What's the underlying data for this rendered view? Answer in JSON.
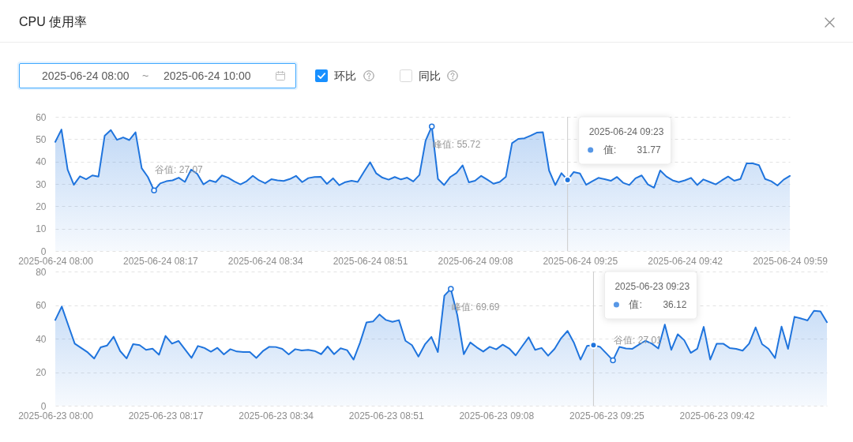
{
  "chart_data": [
    {
      "type": "area",
      "title": "CPU 使用率",
      "annotations": [
        "2025-06-24 08:00",
        "~",
        "2025-06-24 10:00",
        "环比",
        "同比",
        {
          "text": "谷值: 27.07",
          "x": "2025-06-24T08:16",
          "y": 27.07
        },
        {
          "text": "峰值: 55.72",
          "x": "2025-06-24T09:01",
          "y": 55.72
        },
        "值:",
        "31.77"
      ],
      "x": [
        "2025-06-24T08:00",
        "2025-06-24T08:01",
        "2025-06-24T08:02",
        "2025-06-24T08:03",
        "2025-06-24T08:04",
        "2025-06-24T08:05",
        "2025-06-24T08:06",
        "2025-06-24T08:07",
        "2025-06-24T08:08",
        "2025-06-24T08:09",
        "2025-06-24T08:10",
        "2025-06-24T08:11",
        "2025-06-24T08:12",
        "2025-06-24T08:13",
        "2025-06-24T08:14",
        "2025-06-24T08:15",
        "2025-06-24T08:16",
        "2025-06-24T08:17",
        "2025-06-24T08:18",
        "2025-06-24T08:19",
        "2025-06-24T08:20",
        "2025-06-24T08:21",
        "2025-06-24T08:22",
        "2025-06-24T08:23",
        "2025-06-24T08:24",
        "2025-06-24T08:25",
        "2025-06-24T08:26",
        "2025-06-24T08:27",
        "2025-06-24T08:28",
        "2025-06-24T08:29",
        "2025-06-24T08:30",
        "2025-06-24T08:31",
        "2025-06-24T08:32",
        "2025-06-24T08:33",
        "2025-06-24T08:34",
        "2025-06-24T08:35",
        "2025-06-24T08:36",
        "2025-06-24T08:37",
        "2025-06-24T08:38",
        "2025-06-24T08:39",
        "2025-06-24T08:40",
        "2025-06-24T08:41",
        "2025-06-24T08:42",
        "2025-06-24T08:43",
        "2025-06-24T08:44",
        "2025-06-24T08:45",
        "2025-06-24T08:46",
        "2025-06-24T08:47",
        "2025-06-24T08:48",
        "2025-06-24T08:49",
        "2025-06-24T08:50",
        "2025-06-24T08:51",
        "2025-06-24T08:52",
        "2025-06-24T08:53",
        "2025-06-24T08:54",
        "2025-06-24T08:55",
        "2025-06-24T08:56",
        "2025-06-24T08:57",
        "2025-06-24T08:58",
        "2025-06-24T08:59",
        "2025-06-24T09:00",
        "2025-06-24T09:01",
        "2025-06-24T09:02",
        "2025-06-24T09:03",
        "2025-06-24T09:04",
        "2025-06-24T09:05",
        "2025-06-24T09:06",
        "2025-06-24T09:07",
        "2025-06-24T09:08",
        "2025-06-24T09:09",
        "2025-06-24T09:10",
        "2025-06-24T09:11",
        "2025-06-24T09:12",
        "2025-06-24T09:13",
        "2025-06-24T09:14",
        "2025-06-24T09:15",
        "2025-06-24T09:16",
        "2025-06-24T09:17",
        "2025-06-24T09:18",
        "2025-06-24T09:19",
        "2025-06-24T09:20",
        "2025-06-24T09:21",
        "2025-06-24T09:22",
        "2025-06-24T09:23",
        "2025-06-24T09:24",
        "2025-06-24T09:25",
        "2025-06-24T09:26",
        "2025-06-24T09:27",
        "2025-06-24T09:28",
        "2025-06-24T09:29",
        "2025-06-24T09:30",
        "2025-06-24T09:31",
        "2025-06-24T09:32",
        "2025-06-24T09:33",
        "2025-06-24T09:34",
        "2025-06-24T09:35",
        "2025-06-24T09:36",
        "2025-06-24T09:37",
        "2025-06-24T09:38",
        "2025-06-24T09:39",
        "2025-06-24T09:40",
        "2025-06-24T09:41",
        "2025-06-24T09:42",
        "2025-06-24T09:43",
        "2025-06-24T09:44",
        "2025-06-24T09:45",
        "2025-06-24T09:46",
        "2025-06-24T09:47",
        "2025-06-24T09:48",
        "2025-06-24T09:49",
        "2025-06-24T09:50",
        "2025-06-24T09:51",
        "2025-06-24T09:52",
        "2025-06-24T09:53",
        "2025-06-24T09:54",
        "2025-06-24T09:55",
        "2025-06-24T09:56",
        "2025-06-24T09:57",
        "2025-06-24T09:58",
        "2025-06-24T09:59"
      ],
      "values": [
        48.8,
        54.3,
        36.4,
        29.6,
        33.4,
        32.1,
        33.8,
        33.3,
        51.5,
        54.1,
        49.7,
        50.8,
        49.6,
        53.1,
        37.0,
        33.1,
        27.07,
        30.2,
        31.2,
        31.6,
        32.8,
        30.9,
        36.4,
        34.5,
        29.8,
        31.6,
        30.8,
        33.8,
        32.8,
        31.1,
        29.8,
        31.2,
        33.6,
        31.6,
        30.3,
        32.1,
        31.6,
        31.3,
        32.2,
        33.6,
        30.8,
        32.6,
        33.1,
        33.2,
        30.0,
        32.5,
        29.4,
        30.8,
        31.4,
        30.9,
        35.4,
        39.7,
        34.7,
        32.8,
        31.9,
        33.1,
        32.0,
        32.8,
        31.1,
        34.0,
        49.4,
        55.72,
        32.2,
        29.5,
        33.1,
        34.9,
        38.3,
        30.7,
        31.4,
        33.6,
        31.9,
        30.1,
        30.9,
        33.2,
        48.2,
        50.1,
        50.4,
        51.6,
        52.9,
        53.1,
        36.0,
        29.5,
        34.8,
        31.77,
        35.3,
        34.7,
        29.6,
        31.2,
        32.7,
        32.1,
        31.4,
        33.1,
        30.5,
        29.5,
        32.5,
        33.8,
        29.8,
        28.3,
        36.0,
        33.3,
        31.6,
        30.8,
        31.6,
        32.7,
        29.5,
        32.0,
        30.9,
        29.8,
        31.6,
        33.3,
        31.4,
        32.2,
        39.2,
        39.2,
        38.4,
        32.2,
        31.2,
        29.3,
        31.9,
        33.6
      ],
      "color": "#1f74dd",
      "xlim": [
        "2025-06-24T08:00",
        "2025-06-24T09:59"
      ],
      "xticks": [
        {
          "value": "2025-06-24T08:00",
          "label": "2025-06-24 08:00"
        },
        {
          "value": "2025-06-24T08:17",
          "label": "2025-06-24 08:17"
        },
        {
          "value": "2025-06-24T08:34",
          "label": "2025-06-24 08:34"
        },
        {
          "value": "2025-06-24T08:51",
          "label": "2025-06-24 08:51"
        },
        {
          "value": "2025-06-24T09:08",
          "label": "2025-06-24 09:08"
        },
        {
          "value": "2025-06-24T09:25",
          "label": "2025-06-24 09:25"
        },
        {
          "value": "2025-06-24T09:42",
          "label": "2025-06-24 09:42"
        },
        {
          "value": "2025-06-24T09:59",
          "label": "2025-06-24 09:59"
        }
      ],
      "ylim": [
        0,
        60
      ],
      "yticks": [
        0,
        10,
        20,
        30,
        40,
        50,
        60
      ],
      "grid": "y",
      "ref_lines": [
        {
          "axis": "x",
          "value": "2025-06-24T09:23",
          "label": "2025-06-24 09:23",
          "color": "#cccccc"
        }
      ]
    },
    {
      "type": "area",
      "annotations": [
        {
          "text": "峰值: 69.69",
          "x": "2025-06-23T09:01",
          "y": 69.69
        },
        {
          "text": "谷值: 27.01",
          "x": "2025-06-23T09:26",
          "y": 27.01
        },
        "值:",
        "36.12"
      ],
      "x": [
        "2025-06-23T08:00",
        "2025-06-23T08:01",
        "2025-06-23T08:02",
        "2025-06-23T08:03",
        "2025-06-23T08:04",
        "2025-06-23T08:05",
        "2025-06-23T08:06",
        "2025-06-23T08:07",
        "2025-06-23T08:08",
        "2025-06-23T08:09",
        "2025-06-23T08:10",
        "2025-06-23T08:11",
        "2025-06-23T08:12",
        "2025-06-23T08:13",
        "2025-06-23T08:14",
        "2025-06-23T08:15",
        "2025-06-23T08:16",
        "2025-06-23T08:17",
        "2025-06-23T08:18",
        "2025-06-23T08:19",
        "2025-06-23T08:20",
        "2025-06-23T08:21",
        "2025-06-23T08:22",
        "2025-06-23T08:23",
        "2025-06-23T08:24",
        "2025-06-23T08:25",
        "2025-06-23T08:26",
        "2025-06-23T08:27",
        "2025-06-23T08:28",
        "2025-06-23T08:29",
        "2025-06-23T08:30",
        "2025-06-23T08:31",
        "2025-06-23T08:32",
        "2025-06-23T08:33",
        "2025-06-23T08:34",
        "2025-06-23T08:35",
        "2025-06-23T08:36",
        "2025-06-23T08:37",
        "2025-06-23T08:38",
        "2025-06-23T08:39",
        "2025-06-23T08:40",
        "2025-06-23T08:41",
        "2025-06-23T08:42",
        "2025-06-23T08:43",
        "2025-06-23T08:44",
        "2025-06-23T08:45",
        "2025-06-23T08:46",
        "2025-06-23T08:47",
        "2025-06-23T08:48",
        "2025-06-23T08:49",
        "2025-06-23T08:50",
        "2025-06-23T08:51",
        "2025-06-23T08:52",
        "2025-06-23T08:53",
        "2025-06-23T08:54",
        "2025-06-23T08:55",
        "2025-06-23T08:56",
        "2025-06-23T08:57",
        "2025-06-23T08:58",
        "2025-06-23T08:59",
        "2025-06-23T09:00",
        "2025-06-23T09:01",
        "2025-06-23T09:02",
        "2025-06-23T09:03",
        "2025-06-23T09:04",
        "2025-06-23T09:05",
        "2025-06-23T09:06",
        "2025-06-23T09:07",
        "2025-06-23T09:08",
        "2025-06-23T09:09",
        "2025-06-23T09:10",
        "2025-06-23T09:11",
        "2025-06-23T09:12",
        "2025-06-23T09:13",
        "2025-06-23T09:14",
        "2025-06-23T09:15",
        "2025-06-23T09:16",
        "2025-06-23T09:17",
        "2025-06-23T09:18",
        "2025-06-23T09:19",
        "2025-06-23T09:20",
        "2025-06-23T09:21",
        "2025-06-23T09:22",
        "2025-06-23T09:23",
        "2025-06-23T09:24",
        "2025-06-23T09:25",
        "2025-06-23T09:26",
        "2025-06-23T09:27",
        "2025-06-23T09:28",
        "2025-06-23T09:29",
        "2025-06-23T09:30",
        "2025-06-23T09:31",
        "2025-06-23T09:32",
        "2025-06-23T09:33",
        "2025-06-23T09:34",
        "2025-06-23T09:35",
        "2025-06-23T09:36",
        "2025-06-23T09:37",
        "2025-06-23T09:38",
        "2025-06-23T09:39",
        "2025-06-23T09:40",
        "2025-06-23T09:41",
        "2025-06-23T09:42",
        "2025-06-23T09:43",
        "2025-06-23T09:44",
        "2025-06-23T09:45",
        "2025-06-23T09:46",
        "2025-06-23T09:47",
        "2025-06-23T09:48",
        "2025-06-23T09:49",
        "2025-06-23T09:50",
        "2025-06-23T09:51",
        "2025-06-23T09:52",
        "2025-06-23T09:53",
        "2025-06-23T09:54",
        "2025-06-23T09:55",
        "2025-06-23T09:56",
        "2025-06-23T09:57",
        "2025-06-23T09:58",
        "2025-06-23T09:59"
      ],
      "values": [
        51.1,
        59.1,
        48.0,
        37.0,
        34.4,
        31.8,
        28.1,
        34.8,
        35.9,
        41.1,
        32.6,
        28.2,
        36.7,
        36.1,
        33.3,
        34.0,
        30.4,
        41.6,
        37.0,
        38.6,
        33.6,
        28.5,
        35.6,
        34.4,
        32.2,
        34.5,
        30.6,
        33.7,
        32.3,
        32.0,
        32.0,
        28.5,
        32.5,
        35.1,
        35.0,
        33.9,
        30.6,
        33.7,
        32.9,
        33.3,
        32.6,
        30.7,
        35.3,
        30.7,
        34.2,
        33.1,
        27.5,
        37.6,
        49.7,
        50.2,
        54.4,
        51.1,
        50.0,
        51.0,
        38.7,
        36.1,
        29.3,
        36.5,
        41.0,
        32.0,
        65.6,
        69.69,
        54.0,
        30.7,
        37.7,
        34.8,
        32.3,
        35.1,
        33.6,
        36.4,
        34.1,
        30.0,
        35.4,
        40.8,
        33.3,
        34.4,
        29.8,
        33.9,
        40.2,
        44.6,
        37.4,
        27.5,
        35.6,
        36.12,
        35.1,
        31.1,
        27.01,
        35.1,
        34.1,
        33.9,
        36.4,
        38.7,
        37.0,
        34.1,
        48.4,
        33.3,
        42.6,
        39.0,
        31.5,
        33.9,
        47.0,
        27.5,
        37.0,
        37.0,
        34.4,
        33.9,
        32.8,
        37.0,
        46.7,
        36.7,
        33.9,
        28.4,
        47.2,
        33.9,
        53.0,
        52.0,
        50.8,
        56.6,
        56.2,
        49.8
      ],
      "color": "#1f74dd",
      "xlim": [
        "2025-06-23T08:00",
        "2025-06-23T09:59"
      ],
      "xticks": [
        {
          "value": "2025-06-23T08:00",
          "label": "2025-06-23 08:00"
        },
        {
          "value": "2025-06-23T08:17",
          "label": "2025-06-23 08:17"
        },
        {
          "value": "2025-06-23T08:34",
          "label": "2025-06-23 08:34"
        },
        {
          "value": "2025-06-23T08:51",
          "label": "2025-06-23 08:51"
        },
        {
          "value": "2025-06-23T09:08",
          "label": "2025-06-23 09:08"
        },
        {
          "value": "2025-06-23T09:25",
          "label": "2025-06-23 09:25"
        },
        {
          "value": "2025-06-23T09:42",
          "label": "2025-06-23 09:42"
        }
      ],
      "ylim": [
        0,
        80
      ],
      "yticks": [
        0,
        20,
        40,
        60,
        80
      ],
      "grid": "y",
      "ref_lines": [
        {
          "axis": "x",
          "value": "2025-06-23T09:23",
          "label": "2025-06-23 09:23",
          "color": "#cccccc"
        }
      ]
    }
  ]
}
